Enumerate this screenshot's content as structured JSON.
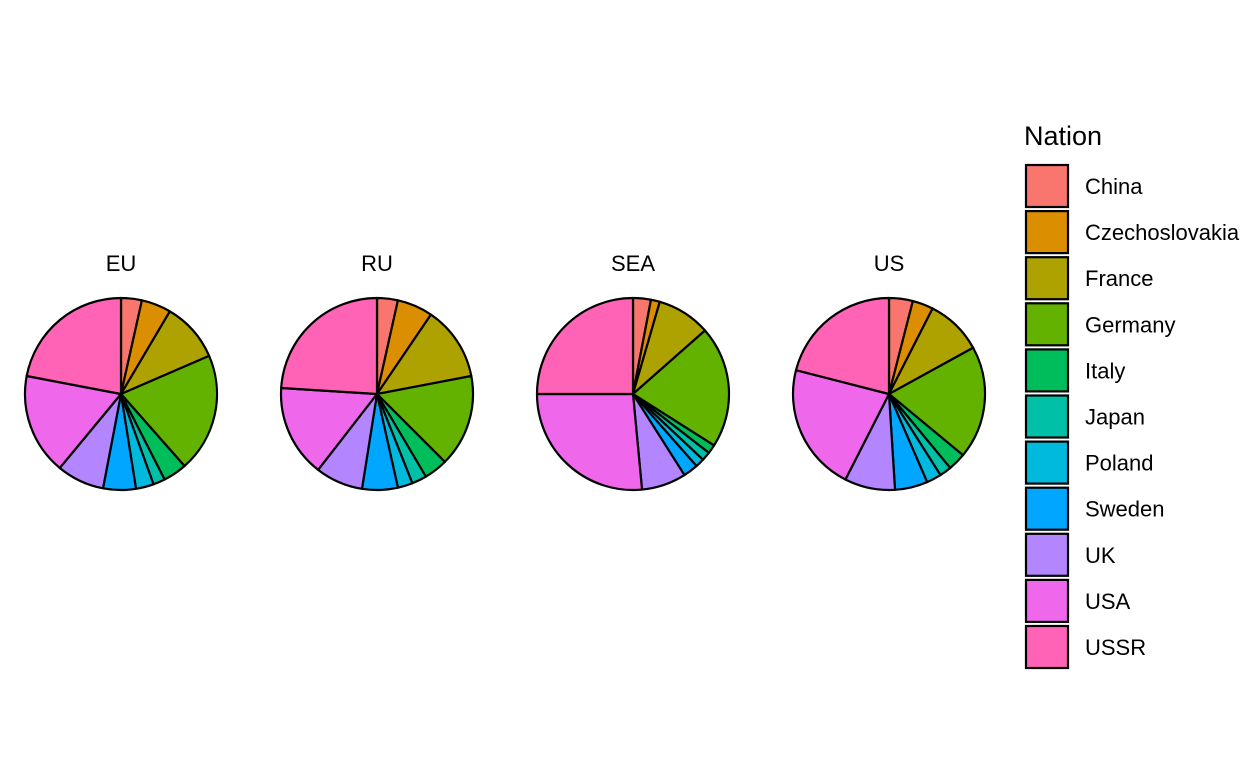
{
  "chart_data": {
    "type": "pie",
    "legend": {
      "title": "Nation",
      "placement": "right",
      "entries": [
        {
          "label": "China",
          "color": "#F8766D"
        },
        {
          "label": "Czechoslovakia",
          "color": "#DB8E00"
        },
        {
          "label": "France",
          "color": "#AEA200"
        },
        {
          "label": "Germany",
          "color": "#64B200"
        },
        {
          "label": "Italy",
          "color": "#00BD5C"
        },
        {
          "label": "Japan",
          "color": "#00C1A7"
        },
        {
          "label": "Poland",
          "color": "#00BADE"
        },
        {
          "label": "Sweden",
          "color": "#00A6FF"
        },
        {
          "label": "UK",
          "color": "#B385FF"
        },
        {
          "label": "USA",
          "color": "#EF67EB"
        },
        {
          "label": "USSR",
          "color": "#FF63B6"
        }
      ]
    },
    "categories": [
      "China",
      "Czechoslovakia",
      "France",
      "Germany",
      "Italy",
      "Japan",
      "Poland",
      "Sweden",
      "UK",
      "USA",
      "USSR"
    ],
    "series": [
      {
        "name": "EU",
        "values": [
          3.5,
          5.0,
          10.0,
          20.0,
          4.0,
          2.0,
          3.0,
          5.5,
          8.0,
          17.0,
          22.0
        ]
      },
      {
        "name": "RU",
        "values": [
          3.5,
          6.0,
          12.5,
          15.5,
          4.0,
          2.5,
          2.5,
          6.0,
          8.0,
          15.5,
          24.0
        ]
      },
      {
        "name": "SEA",
        "values": [
          3.0,
          1.5,
          9.0,
          20.5,
          1.5,
          1.5,
          1.5,
          2.5,
          7.5,
          26.5,
          25.0
        ]
      },
      {
        "name": "US",
        "values": [
          4.0,
          3.5,
          9.5,
          19.0,
          3.0,
          2.0,
          2.5,
          5.5,
          8.5,
          21.5,
          21.0
        ]
      }
    ]
  }
}
